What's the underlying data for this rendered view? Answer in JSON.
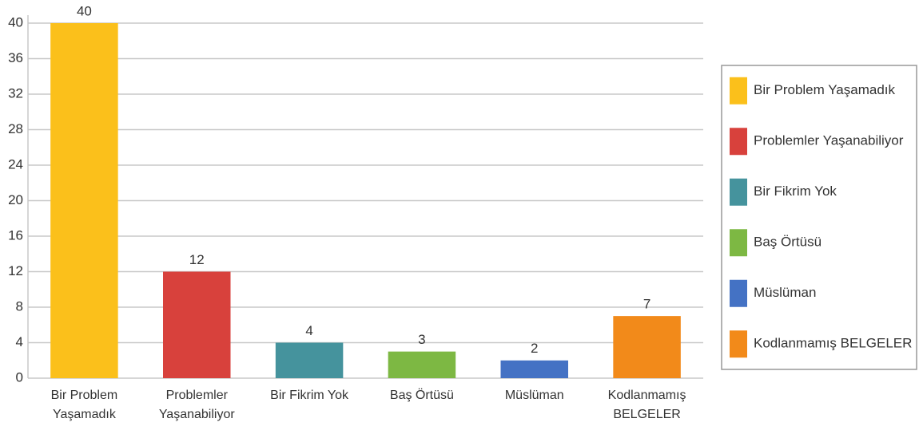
{
  "chart_data": {
    "type": "bar",
    "categories": [
      "Bir Problem Yaşamadık",
      "Problemler Yaşanabiliyor",
      "Bir Fikrim Yok",
      "Baş Örtüsü",
      "Müslüman",
      "Kodlanmamış BELGELER"
    ],
    "values": [
      40,
      12,
      4,
      3,
      2,
      7
    ],
    "colors": [
      "#fbc01b",
      "#d8413c",
      "#45939d",
      "#7db843",
      "#4472c4",
      "#f28a1a"
    ],
    "ylim": [
      0,
      40
    ],
    "yticks": [
      0,
      4,
      8,
      12,
      16,
      20,
      24,
      28,
      32,
      36,
      40
    ],
    "grid": true,
    "legend": "right"
  }
}
